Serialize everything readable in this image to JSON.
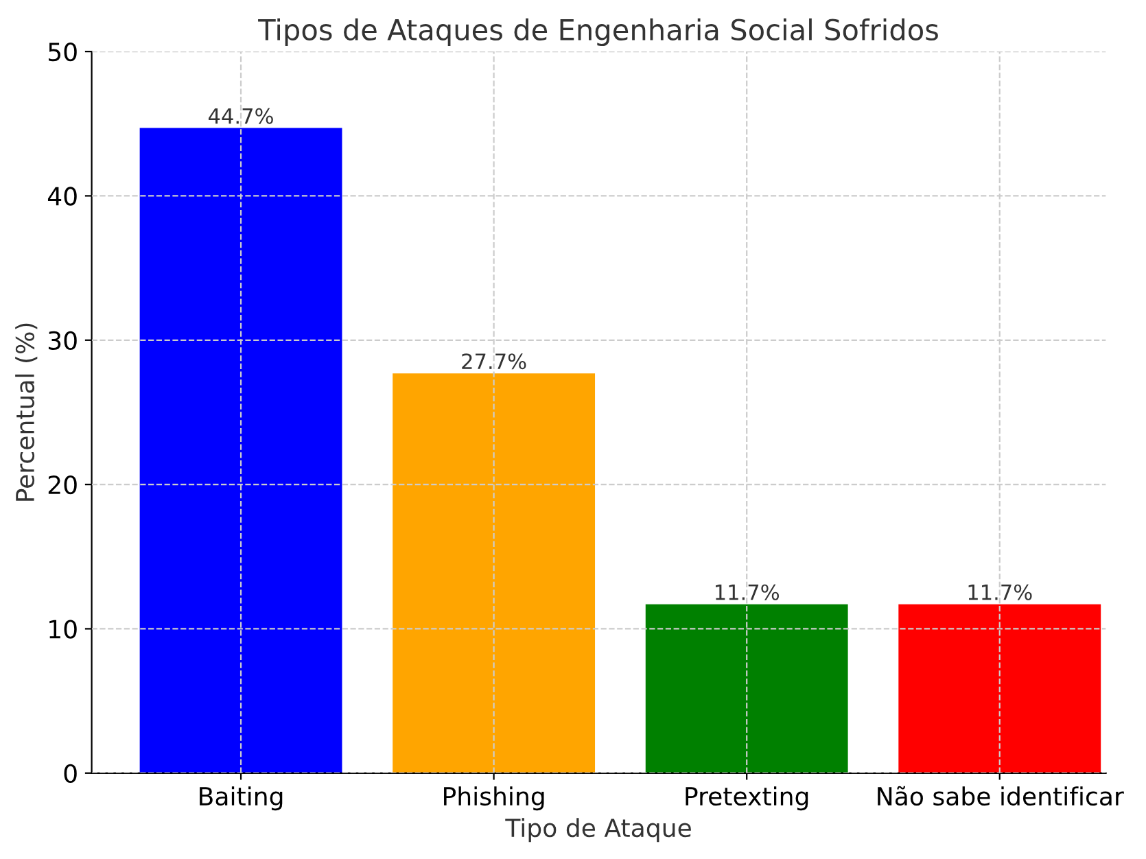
{
  "chart_data": {
    "type": "bar",
    "title": "Tipos de Ataques de Engenharia Social Sofridos",
    "xlabel": "Tipo de Ataque",
    "ylabel": "Percentual (%)",
    "categories": [
      "Baiting",
      "Phishing",
      "Pretexting",
      "Não sabe identificar"
    ],
    "values": [
      44.7,
      27.7,
      11.7,
      11.7
    ],
    "colors": [
      "#0000ff",
      "#ffa500",
      "#008000",
      "#ff0000"
    ],
    "value_labels": [
      "44.7%",
      "27.7%",
      "11.7%",
      "11.7%"
    ],
    "ylim": [
      0,
      50
    ],
    "yticks": [
      0,
      10,
      20,
      30,
      40,
      50
    ],
    "grid": true,
    "line_style": "dashed"
  }
}
